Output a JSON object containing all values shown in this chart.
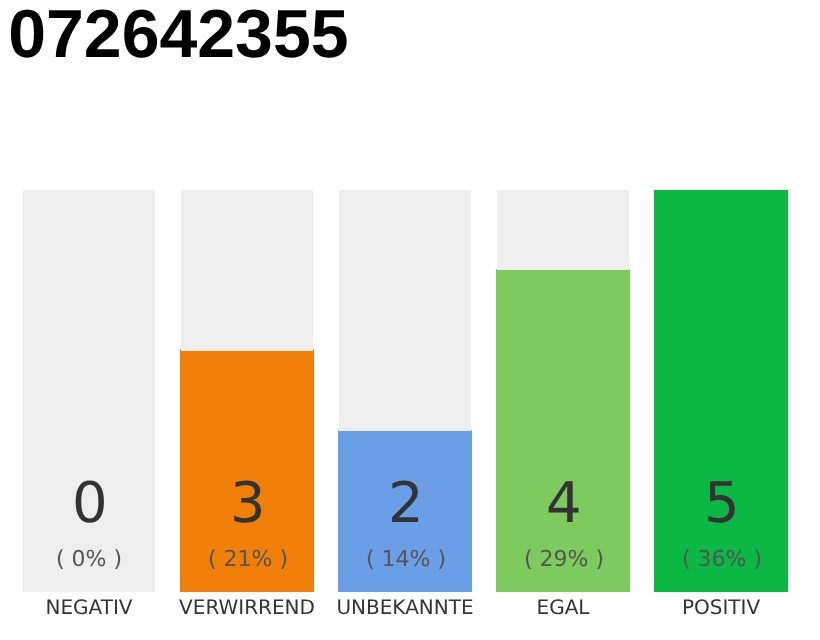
{
  "chart_data": {
    "type": "bar",
    "title": "072642355",
    "categories": [
      "NEGATIV",
      "VERWIRREND",
      "UNBEKANNTE",
      "EGAL",
      "POSITIV"
    ],
    "stacked": true,
    "series": [
      {
        "colors": [
          "#666666",
          "#f07f0a",
          "#6a9fe8",
          "#7dca5e",
          "#0bb843"
        ],
        "values": [
          0,
          3,
          2,
          4,
          5
        ],
        "value_labels": [
          "0\n( 0% )",
          "3\n( 21% )",
          "2\n( 14% )",
          "4\n( 29% )",
          "5\n( 36% )"
        ]
      },
      {
        "color": "#eeeeee",
        "values": [
          5,
          2,
          3,
          1,
          0
        ]
      }
    ]
  }
}
